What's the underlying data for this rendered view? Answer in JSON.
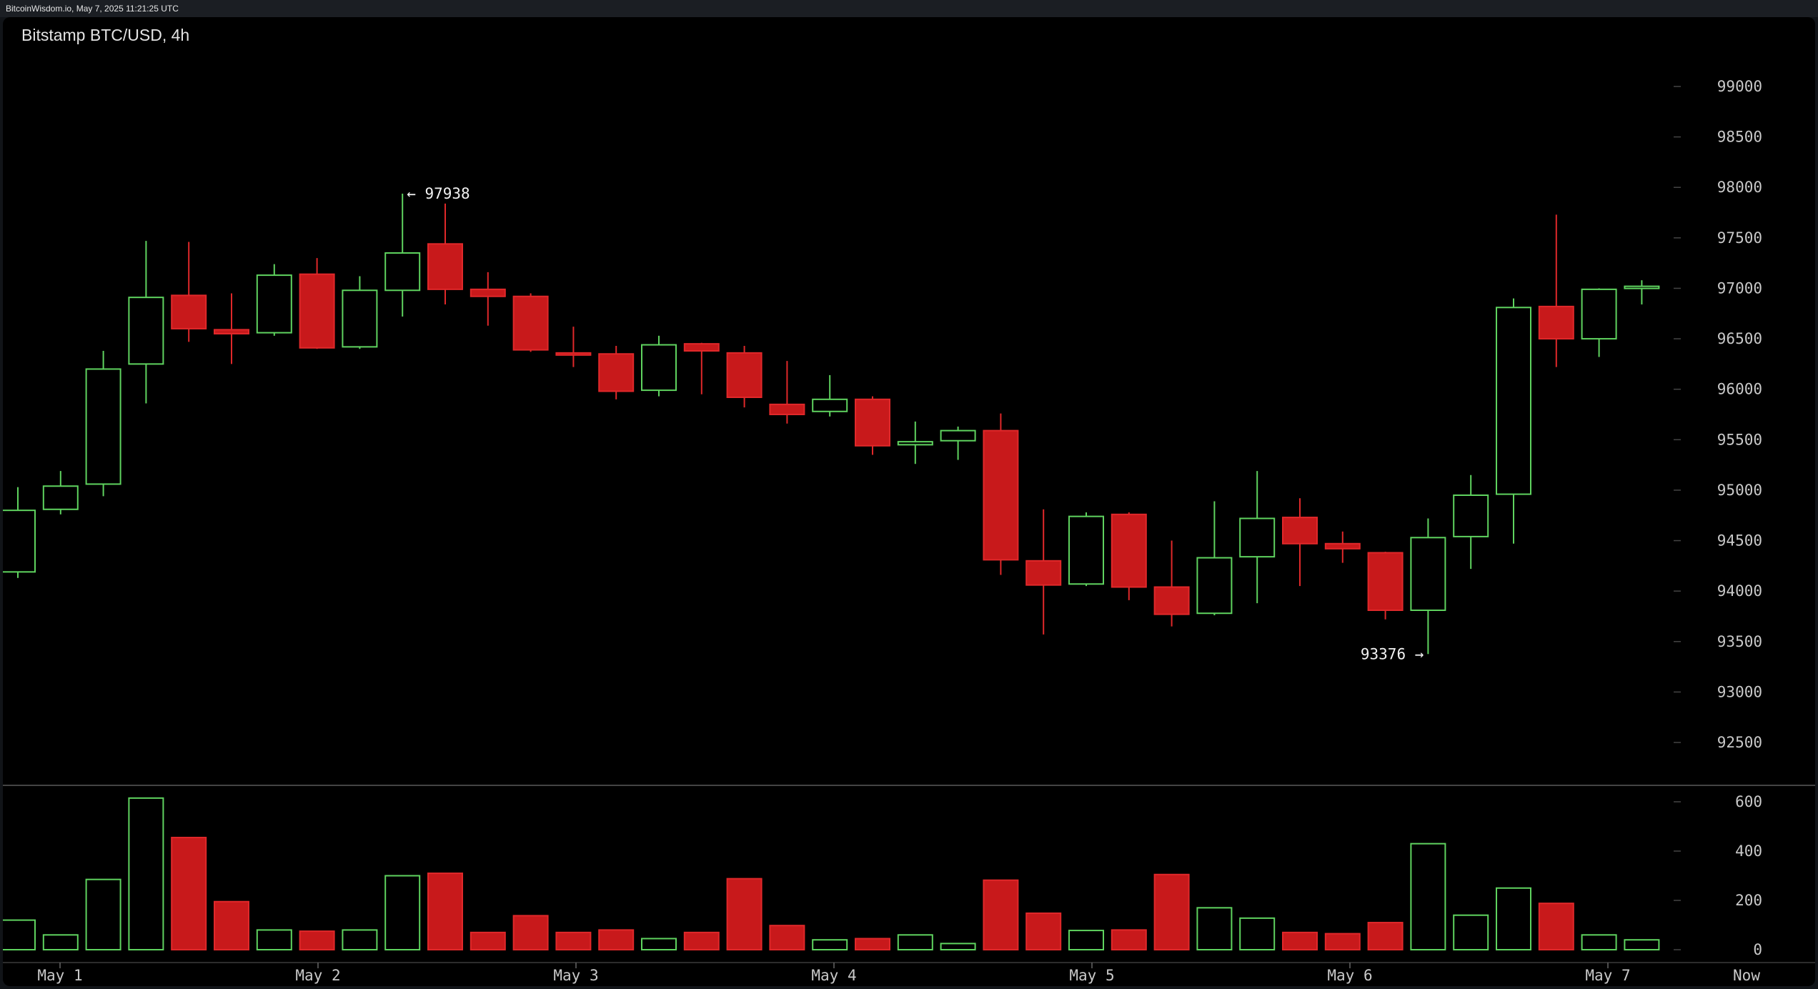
{
  "header": {
    "source": "BitcoinWisdom.io, May 7, 2025 11:21:25 UTC"
  },
  "chart_data": {
    "type": "candlestick",
    "title": "Bitstamp BTC/USD, 4h",
    "x_labels": [
      "May 1",
      "May 2",
      "May 3",
      "May 4",
      "May 5",
      "May 6",
      "May 7",
      "Now"
    ],
    "price_axis": {
      "ticks": [
        99000,
        98500,
        98000,
        97500,
        97000,
        96500,
        96000,
        95500,
        95000,
        94500,
        94000,
        93500,
        93000,
        92500
      ],
      "range": [
        92200,
        99700
      ]
    },
    "volume_axis": {
      "ticks": [
        600,
        400,
        200,
        0
      ],
      "range": [
        0,
        660
      ]
    },
    "annotations": {
      "high": "← 97938",
      "low": "93376 →"
    },
    "colors": {
      "up": "#5fd35f",
      "down": "#c8191b",
      "down_border": "#e0282a",
      "axis_text": "#c9c9c9",
      "grid": "#444444"
    },
    "candles": [
      {
        "open": 94190,
        "high": 95030,
        "low": 94130,
        "close": 94800,
        "volume": 120
      },
      {
        "open": 94810,
        "high": 95190,
        "low": 94760,
        "close": 95040,
        "volume": 60
      },
      {
        "open": 95060,
        "high": 96380,
        "low": 94940,
        "close": 96200,
        "volume": 285
      },
      {
        "open": 96250,
        "high": 97470,
        "low": 95860,
        "close": 96910,
        "volume": 615
      },
      {
        "open": 96930,
        "high": 97460,
        "low": 96470,
        "close": 96600,
        "volume": 455
      },
      {
        "open": 96590,
        "high": 96950,
        "low": 96250,
        "close": 96550,
        "volume": 195
      },
      {
        "open": 96560,
        "high": 97240,
        "low": 96530,
        "close": 97130,
        "volume": 80
      },
      {
        "open": 97140,
        "high": 97300,
        "low": 96400,
        "close": 96410,
        "volume": 75
      },
      {
        "open": 96420,
        "high": 97120,
        "low": 96400,
        "close": 96980,
        "volume": 80
      },
      {
        "open": 96980,
        "high": 97938,
        "low": 96720,
        "close": 97350,
        "volume": 300
      },
      {
        "open": 97440,
        "high": 97840,
        "low": 96840,
        "close": 96990,
        "volume": 310
      },
      {
        "open": 96990,
        "high": 97160,
        "low": 96630,
        "close": 96920,
        "volume": 70
      },
      {
        "open": 96920,
        "high": 96950,
        "low": 96370,
        "close": 96390,
        "volume": 138
      },
      {
        "open": 96360,
        "high": 96620,
        "low": 96220,
        "close": 96340,
        "volume": 70
      },
      {
        "open": 96350,
        "high": 96430,
        "low": 95900,
        "close": 95980,
        "volume": 80
      },
      {
        "open": 95990,
        "high": 96530,
        "low": 95930,
        "close": 96440,
        "volume": 45
      },
      {
        "open": 96450,
        "high": 96460,
        "low": 95950,
        "close": 96380,
        "volume": 70
      },
      {
        "open": 96360,
        "high": 96430,
        "low": 95820,
        "close": 95920,
        "volume": 288
      },
      {
        "open": 95850,
        "high": 96280,
        "low": 95660,
        "close": 95750,
        "volume": 98
      },
      {
        "open": 95780,
        "high": 96140,
        "low": 95730,
        "close": 95900,
        "volume": 40
      },
      {
        "open": 95900,
        "high": 95930,
        "low": 95350,
        "close": 95440,
        "volume": 45
      },
      {
        "open": 95450,
        "high": 95680,
        "low": 95260,
        "close": 95480,
        "volume": 60
      },
      {
        "open": 95490,
        "high": 95630,
        "low": 95300,
        "close": 95590,
        "volume": 25
      },
      {
        "open": 95590,
        "high": 95760,
        "low": 94160,
        "close": 94310,
        "volume": 282
      },
      {
        "open": 94300,
        "high": 94810,
        "low": 93570,
        "close": 94060,
        "volume": 148
      },
      {
        "open": 94070,
        "high": 94780,
        "low": 94050,
        "close": 94740,
        "volume": 78
      },
      {
        "open": 94760,
        "high": 94780,
        "low": 93910,
        "close": 94040,
        "volume": 80
      },
      {
        "open": 94040,
        "high": 94500,
        "low": 93650,
        "close": 93770,
        "volume": 305
      },
      {
        "open": 93780,
        "high": 94890,
        "low": 93760,
        "close": 94330,
        "volume": 170
      },
      {
        "open": 94340,
        "high": 95190,
        "low": 93880,
        "close": 94720,
        "volume": 128
      },
      {
        "open": 94730,
        "high": 94920,
        "low": 94050,
        "close": 94470,
        "volume": 70
      },
      {
        "open": 94470,
        "high": 94590,
        "low": 94280,
        "close": 94420,
        "volume": 65
      },
      {
        "open": 94380,
        "high": 94390,
        "low": 93720,
        "close": 93810,
        "volume": 110
      },
      {
        "open": 93810,
        "high": 94720,
        "low": 93376,
        "close": 94530,
        "volume": 430
      },
      {
        "open": 94540,
        "high": 95150,
        "low": 94220,
        "close": 94950,
        "volume": 140
      },
      {
        "open": 94960,
        "high": 96900,
        "low": 94470,
        "close": 96810,
        "volume": 250
      },
      {
        "open": 96820,
        "high": 97730,
        "low": 96220,
        "close": 96500,
        "volume": 188
      },
      {
        "open": 96500,
        "high": 97000,
        "low": 96320,
        "close": 96990,
        "volume": 60
      },
      {
        "open": 97000,
        "high": 97080,
        "low": 96840,
        "close": 97020,
        "volume": 40
      }
    ]
  }
}
